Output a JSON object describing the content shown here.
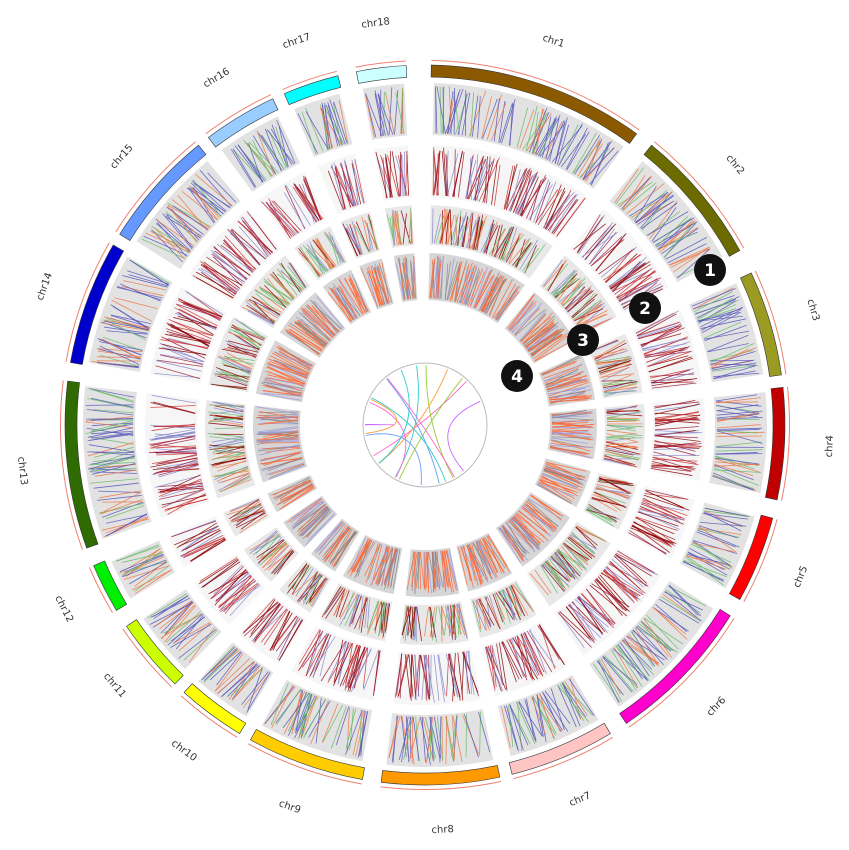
{
  "chromosomes": [
    {
      "name": "chr1",
      "color": "#8b5a00"
    },
    {
      "name": "chr2",
      "color": "#6b6b00"
    },
    {
      "name": "chr3",
      "color": "#9b9b22"
    },
    {
      "name": "chr4",
      "color": "#c00000"
    },
    {
      "name": "chr5",
      "color": "#ff0000"
    },
    {
      "name": "chr6",
      "color": "#ff00cc"
    },
    {
      "name": "chr7",
      "color": "#ffc4c4"
    },
    {
      "name": "chr8",
      "color": "#ff9900"
    },
    {
      "name": "chr9",
      "color": "#ffcc00"
    },
    {
      "name": "chr10",
      "color": "#ffff00"
    },
    {
      "name": "chr11",
      "color": "#ccff00"
    },
    {
      "name": "chr12",
      "color": "#00ee00"
    },
    {
      "name": "chr13",
      "color": "#2f6b00"
    },
    {
      "name": "chr14",
      "color": "#0000cc"
    },
    {
      "name": "chr15",
      "color": "#6699ff"
    },
    {
      "name": "chr16",
      "color": "#99ccff"
    },
    {
      "name": "chr17",
      "color": "#00ffff"
    },
    {
      "name": "chr18",
      "color": "#ccffff"
    }
  ],
  "callouts": [
    "1",
    "2",
    "3",
    "4"
  ]
}
